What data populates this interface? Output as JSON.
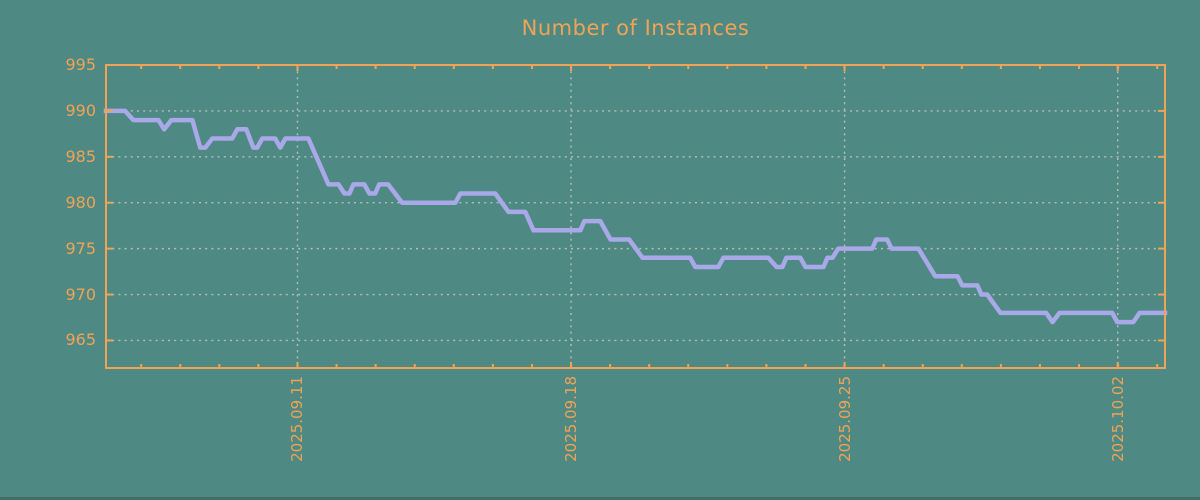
{
  "window": {
    "background_color": "#4e8a83",
    "bottom_edge_color": "#406e67"
  },
  "chart_data": {
    "type": "line",
    "title": "Number of Instances",
    "colors": {
      "axis_and_text": "#f0a356",
      "line": "#a9a8e8",
      "grid": "#b6beb9"
    },
    "ylim": [
      962,
      995
    ],
    "yticks": [
      {
        "value": 995,
        "label": "995"
      },
      {
        "value": 990,
        "label": "990"
      },
      {
        "value": 985,
        "label": "985"
      },
      {
        "value": 980,
        "label": "980"
      },
      {
        "value": 975,
        "label": "975"
      },
      {
        "value": 970,
        "label": "970"
      },
      {
        "value": 965,
        "label": "965"
      }
    ],
    "grid_horizontal_at": [
      990,
      985,
      980,
      975,
      970,
      965
    ],
    "x_unit": "days (offset from approx 2025-09-06); date labels read bottom-to-top",
    "x_range_days": [
      0,
      27.1
    ],
    "xticks": [
      {
        "day": 4.9,
        "label": "2025.09.11"
      },
      {
        "day": 11.9,
        "label": "2025.09.18"
      },
      {
        "day": 18.9,
        "label": "2025.09.25"
      },
      {
        "day": 25.89,
        "label": "2025.10.02"
      }
    ],
    "minor_xticks": {
      "start_day": 0.9,
      "interval_days": 1
    },
    "legend": "none",
    "points": [
      [
        0,
        990
      ],
      [
        0.49,
        990
      ],
      [
        0.7,
        989
      ],
      [
        1.34,
        989
      ],
      [
        1.49,
        988
      ],
      [
        1.67,
        989
      ],
      [
        2.21,
        989
      ],
      [
        2.41,
        986
      ],
      [
        2.54,
        986
      ],
      [
        2.72,
        987
      ],
      [
        3.23,
        987
      ],
      [
        3.36,
        988
      ],
      [
        3.59,
        988
      ],
      [
        3.77,
        986
      ],
      [
        3.87,
        986
      ],
      [
        4,
        987
      ],
      [
        4.33,
        987
      ],
      [
        4.46,
        986
      ],
      [
        4.59,
        987
      ],
      [
        5.18,
        987
      ],
      [
        5.69,
        982
      ],
      [
        5.95,
        982
      ],
      [
        6.1,
        981
      ],
      [
        6.23,
        981
      ],
      [
        6.33,
        982
      ],
      [
        6.61,
        982
      ],
      [
        6.74,
        981
      ],
      [
        6.89,
        981
      ],
      [
        6.99,
        982
      ],
      [
        7.22,
        982
      ],
      [
        7.58,
        980
      ],
      [
        8.94,
        980
      ],
      [
        9.07,
        981
      ],
      [
        9.96,
        981
      ],
      [
        10.3,
        979
      ],
      [
        10.73,
        979
      ],
      [
        10.94,
        977
      ],
      [
        12.14,
        977
      ],
      [
        12.24,
        978
      ],
      [
        12.65,
        978
      ],
      [
        12.91,
        976
      ],
      [
        13.39,
        976
      ],
      [
        13.73,
        974
      ],
      [
        14.95,
        974
      ],
      [
        15.08,
        973
      ],
      [
        15.67,
        973
      ],
      [
        15.8,
        974
      ],
      [
        16.95,
        974
      ],
      [
        17.16,
        973
      ],
      [
        17.31,
        973
      ],
      [
        17.41,
        974
      ],
      [
        17.77,
        974
      ],
      [
        17.9,
        973
      ],
      [
        18.36,
        973
      ],
      [
        18.46,
        974
      ],
      [
        18.59,
        974
      ],
      [
        18.74,
        975
      ],
      [
        19.61,
        975
      ],
      [
        19.71,
        976
      ],
      [
        19.99,
        976
      ],
      [
        20.1,
        975
      ],
      [
        20.79,
        975
      ],
      [
        21.22,
        972
      ],
      [
        21.79,
        972
      ],
      [
        21.91,
        971
      ],
      [
        22.3,
        971
      ],
      [
        22.4,
        970
      ],
      [
        22.55,
        970
      ],
      [
        22.89,
        968
      ],
      [
        24.06,
        968
      ],
      [
        24.22,
        967
      ],
      [
        24.4,
        968
      ],
      [
        25.75,
        968
      ],
      [
        25.88,
        967
      ],
      [
        26.29,
        967
      ],
      [
        26.45,
        968
      ],
      [
        27.1,
        968
      ]
    ]
  }
}
